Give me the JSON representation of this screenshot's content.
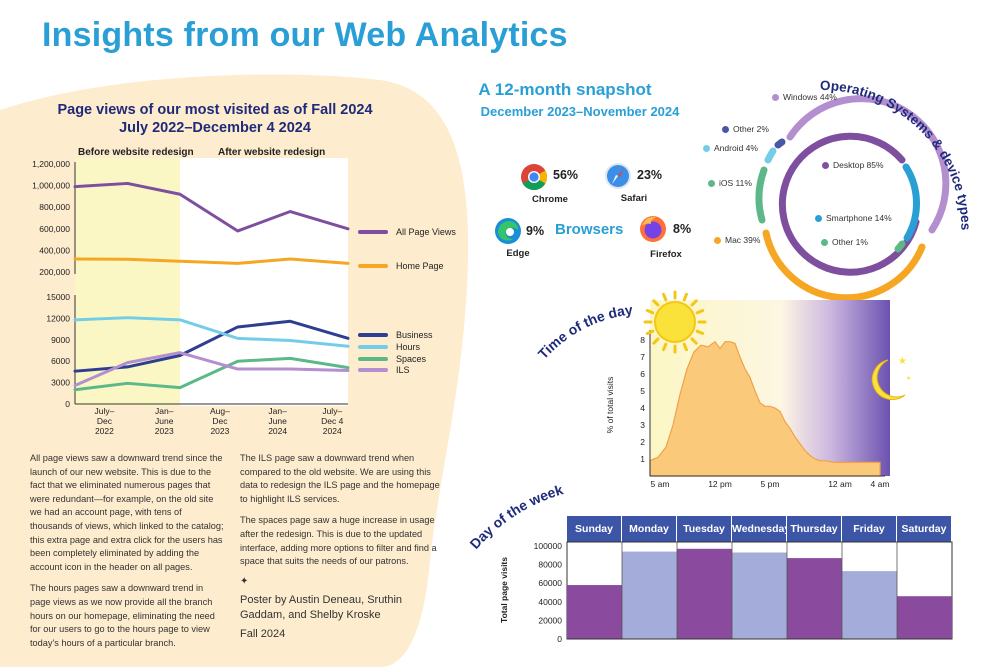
{
  "title": "Insights from our Web Analytics",
  "page_views": {
    "title_line1": "Page views of our most visited as of Fall 2024",
    "title_line2": "July 2022–December 4 2024",
    "before_label": "Before website redesign",
    "after_label": "After website redesign"
  },
  "paragraphs_left": [
    "All page views saw a downward trend since the launch of our new website. This is due to the fact that we eliminated numerous pages that were redundant—for example, on the old site we had an account page, with tens of thousands of views, which linked to the catalog; this extra page and extra click for the users has been completely eliminated by adding the account icon in the header on all pages.",
    "The hours pages saw a downward trend in page views as we now provide all the branch hours on our homepage, eliminating the need for our users to go to the hours page to view today's hours of a particular branch."
  ],
  "paragraphs_right": [
    "The ILS page saw a downward trend when compared to the old website. We are using this data to redesign the ILS page and the homepage to highlight ILS services.",
    "The spaces page saw a huge increase in usage after the redesign. This is due to the updated interface, adding more options to filter and find a space that suits the needs of our patrons."
  ],
  "credit_symbol": "✦",
  "credit_line1": "Poster by Austin Deneau, Sruthin",
  "credit_line2": "Gaddam, and Shelby Kroske",
  "credit_line3": "Fall 2024",
  "snapshot_title": "A 12-month snapshot",
  "snapshot_range": "December 2023–November 2024",
  "browsers_label": "Browsers",
  "browsers": [
    {
      "name": "Chrome",
      "pct": "56%",
      "icon": "chrome-icon"
    },
    {
      "name": "Safari",
      "pct": "23%",
      "icon": "safari-icon"
    },
    {
      "name": "Edge",
      "pct": "9%",
      "icon": "edge-icon"
    },
    {
      "name": "Firefox",
      "pct": "8%",
      "icon": "firefox-icon"
    }
  ],
  "os_title": "Operating Systems & device types",
  "os_labels": {
    "windows": "Windows 44%",
    "other": "Other 2%",
    "android": "Android 4%",
    "ios": "iOS 11%",
    "mac": "Mac 39%",
    "desktop": "Desktop 85%",
    "smartphone": "Smartphone 14%",
    "other_device": "Other 1%"
  },
  "time_title": "Time of the day",
  "week_title": "Day of the week",
  "colors": {
    "purple": "#7d4f9e",
    "orange": "#f5a623",
    "navy": "#2e3f91",
    "light_blue": "#74cde8",
    "green": "#5cb888",
    "lilac": "#b48fcf",
    "highlight": "#fbf7c4",
    "blob": "#fdeccd",
    "week_header": "#3d55a6",
    "week_dark": "#8a4a9e",
    "week_light": "#a4acd9"
  },
  "chart_data": [
    {
      "type": "line",
      "x": [
        "July–Dec 2022",
        "Jan–June 2023",
        "Aug–Dec 2023",
        "Jan–June 2024",
        "July–Dec 4 2024"
      ],
      "x_tick_labels": [
        [
          "July–",
          "Dec",
          "2022"
        ],
        [
          "Jan–",
          "June",
          "2023"
        ],
        [
          "Aug–",
          "Dec",
          "2023"
        ],
        [
          "Jan–",
          "June",
          "2024"
        ],
        [
          "July–",
          "Dec 4",
          "2024"
        ]
      ],
      "ylim": [
        200000,
        1200000
      ],
      "yticks": [
        "200,000",
        "400,000",
        "600,000",
        "800,000",
        "1,000,000",
        "1,200,000"
      ],
      "series": [
        {
          "name": "All Page Views",
          "color": "#7d4f9e",
          "x": [
            0,
            0.5,
            1,
            1.55,
            2.05,
            2.6
          ],
          "values": [
            990000,
            1020000,
            920000,
            580000,
            760000,
            600000
          ]
        },
        {
          "name": "Home Page",
          "color": "#f5a623",
          "x": [
            0,
            0.5,
            1,
            1.55,
            2.05,
            2.6
          ],
          "values": [
            320000,
            318000,
            300000,
            280000,
            320000,
            280000
          ]
        }
      ]
    },
    {
      "type": "line",
      "x": [
        "July–Dec 2022",
        "Jan–June 2023",
        "Aug–Dec 2023",
        "Jan–June 2024",
        "July–Dec 4 2024"
      ],
      "ylim": [
        0,
        15000
      ],
      "yticks": [
        "0",
        "3000",
        "6000",
        "9000",
        "12000",
        "15000"
      ],
      "series": [
        {
          "name": "Business",
          "color": "#2e3f91",
          "x": [
            0,
            0.5,
            1,
            1.55,
            2.05,
            2.6
          ],
          "values": [
            4600,
            5200,
            6800,
            10800,
            11600,
            9200
          ]
        },
        {
          "name": "Hours",
          "color": "#74cde8",
          "x": [
            0,
            0.5,
            1,
            1.55,
            2.05,
            2.6
          ],
          "values": [
            11800,
            12100,
            11800,
            9200,
            8900,
            8100
          ]
        },
        {
          "name": "Spaces",
          "color": "#5cb888",
          "x": [
            0,
            0.5,
            1,
            1.55,
            2.05,
            2.6
          ],
          "values": [
            2000,
            2900,
            2300,
            6000,
            6400,
            5100
          ]
        },
        {
          "name": "ILS",
          "color": "#b48fcf",
          "x": [
            0,
            0.5,
            1,
            1.55,
            2.05,
            2.6
          ],
          "values": [
            2600,
            5800,
            7200,
            4900,
            4900,
            4700
          ]
        }
      ]
    },
    {
      "type": "area",
      "ylabel": "% of total visits",
      "ylim": [
        0,
        8
      ],
      "yticks": [
        "1",
        "2",
        "3",
        "4",
        "5",
        "6",
        "7",
        "8"
      ],
      "xtick_labels": [
        "5 am",
        "12 pm",
        "5 pm",
        "12 am",
        "4 am"
      ],
      "xtick_hours": [
        0,
        7,
        12,
        19,
        23
      ],
      "series": [
        {
          "name": "",
          "x": [
            0,
            0.8,
            1.6,
            2.3,
            3,
            3.7,
            4.4,
            5.1,
            5.8,
            6.5,
            7,
            7.5,
            8,
            8.5,
            9,
            9.5,
            10,
            10.5,
            11,
            11.5,
            12,
            12.5,
            13,
            13.5,
            14,
            14.5,
            15,
            15.5,
            16,
            16.5,
            17,
            17.5,
            18,
            18.5,
            19,
            19.5,
            20,
            20.5,
            21,
            21.5,
            22,
            22.5,
            23
          ],
          "values": [
            0.9,
            1.1,
            1.7,
            3.0,
            4.8,
            6.3,
            7.3,
            7.7,
            7.6,
            7.9,
            7.5,
            7.9,
            7.9,
            7.8,
            7.0,
            6.3,
            5.8,
            5.0,
            4.3,
            4.1,
            4.1,
            4.0,
            3.8,
            3.2,
            2.8,
            2.3,
            1.9,
            1.5,
            1.2,
            1.0,
            0.9,
            0.9,
            0.85,
            0.8,
            0.8,
            0.8,
            0.8,
            0.8,
            0.8,
            0.8,
            0.8,
            0.8,
            0.8
          ]
        }
      ]
    },
    {
      "type": "bar",
      "ylabel": "Total page visits",
      "ylim": [
        0,
        100000
      ],
      "yticks": [
        "0",
        "20000",
        "40000",
        "60000",
        "80000",
        "100000"
      ],
      "categories": [
        "Sunday",
        "Monday",
        "Tuesday",
        "Wednesday",
        "Thursday",
        "Friday",
        "Saturday"
      ],
      "values": [
        58000,
        94000,
        97000,
        93000,
        87000,
        73000,
        46000
      ]
    }
  ]
}
